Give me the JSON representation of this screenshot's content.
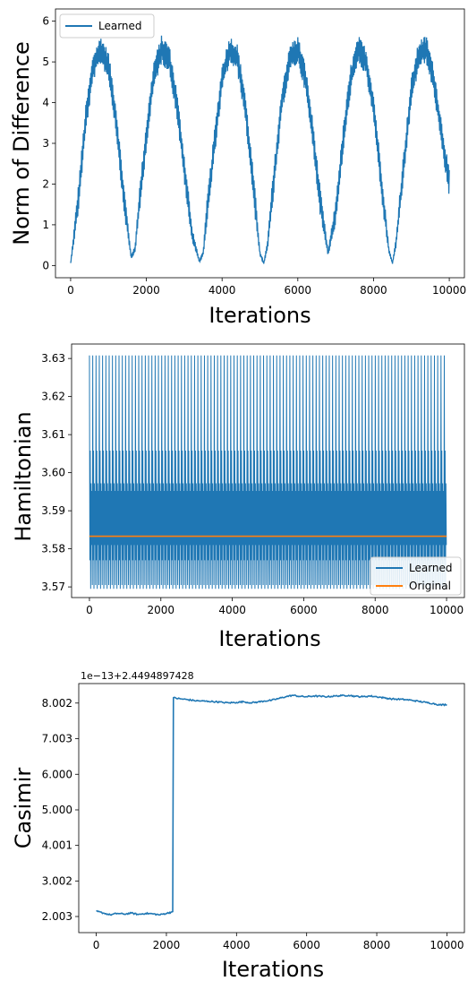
{
  "chart_data": [
    {
      "type": "line",
      "xlabel": "Iterations",
      "ylabel": "Norm of Difference",
      "xlim": [
        -400,
        10400
      ],
      "ylim": [
        -0.3,
        6.3
      ],
      "xticks": [
        0,
        2000,
        4000,
        6000,
        8000,
        10000
      ],
      "xtick_labels": [
        "0",
        "2000",
        "4000",
        "6000",
        "8000",
        "10000"
      ],
      "yticks": [
        0,
        1,
        2,
        3,
        4,
        5,
        6
      ],
      "ytick_labels": [
        "0",
        "1",
        "2",
        "3",
        "4",
        "5",
        "6"
      ],
      "legend": {
        "position": "upper-left",
        "entries": [
          "Learned"
        ]
      },
      "series": [
        {
          "name": "Learned",
          "color": "#1f77b4",
          "x": [
            0,
            200,
            400,
            600,
            800,
            1000,
            1200,
            1400,
            1600,
            1700,
            1800,
            2000,
            2200,
            2400,
            2600,
            2800,
            3000,
            3200,
            3400,
            3500,
            3600,
            3800,
            4000,
            4200,
            4400,
            4600,
            4800,
            5000,
            5100,
            5200,
            5400,
            5600,
            5800,
            6000,
            6200,
            6400,
            6600,
            6800,
            7000,
            7200,
            7400,
            7600,
            7800,
            8000,
            8200,
            8400,
            8500,
            8600,
            8800,
            9000,
            9200,
            9400,
            9600,
            9800,
            10000
          ],
          "values": [
            0.05,
            1.6,
            3.6,
            4.9,
            5.3,
            4.9,
            3.6,
            1.7,
            0.2,
            0.4,
            1.4,
            3.2,
            4.7,
            5.3,
            5.1,
            4.0,
            2.4,
            0.8,
            0.1,
            0.3,
            1.3,
            3.0,
            4.6,
            5.3,
            5.1,
            4.0,
            2.2,
            0.3,
            0.05,
            0.5,
            2.4,
            4.2,
            5.1,
            5.3,
            4.6,
            3.2,
            1.5,
            0.3,
            1.3,
            3.1,
            4.6,
            5.3,
            5.0,
            3.9,
            2.1,
            0.4,
            0.05,
            0.6,
            2.5,
            4.3,
            5.2,
            5.3,
            4.5,
            3.2,
            2.0
          ],
          "oscillation_amplitude": 0.35
        }
      ]
    },
    {
      "type": "line",
      "xlabel": "Iterations",
      "ylabel": "Hamiltonian",
      "xlim": [
        -500,
        10500
      ],
      "ylim": [
        3.5672,
        3.6338
      ],
      "xticks": [
        0,
        2000,
        4000,
        6000,
        8000,
        10000
      ],
      "xtick_labels": [
        "0",
        "2000",
        "4000",
        "6000",
        "8000",
        "10000"
      ],
      "yticks": [
        3.57,
        3.58,
        3.59,
        3.6,
        3.61,
        3.62,
        3.63
      ],
      "ytick_labels": [
        "3.57",
        "3.58",
        "3.59",
        "3.60",
        "3.61",
        "3.62",
        "3.63"
      ],
      "legend": {
        "position": "lower-right",
        "entries": [
          "Learned",
          "Original"
        ]
      },
      "series": [
        {
          "name": "Learned",
          "color": "#1f77b4",
          "x_range": [
            0,
            10000
          ],
          "period": 92,
          "min": 3.5695,
          "max": 3.6308,
          "inner_band": [
            3.577,
            3.5972
          ],
          "secondary_peak": 3.6058
        },
        {
          "name": "Original",
          "color": "#ff7f0e",
          "x": [
            0,
            10000
          ],
          "values": [
            3.5833,
            3.5833
          ]
        }
      ]
    },
    {
      "type": "line",
      "xlabel": "Iterations",
      "ylabel": "Casimir",
      "offset_text": "1e−13+2.4494897428",
      "xlim": [
        -500,
        10500
      ],
      "ylim": [
        1.55,
        8.55
      ],
      "xticks": [
        0,
        2000,
        4000,
        6000,
        8000,
        10000
      ],
      "xtick_labels": [
        "0",
        "2000",
        "4000",
        "6000",
        "8000",
        "10000"
      ],
      "yticks": [
        2.003,
        3.002,
        4.001,
        5.0,
        6.0,
        7.003,
        8.002
      ],
      "ytick_labels": [
        "2.003",
        "3.002",
        "4.001",
        "5.000",
        "6.000",
        "7.003",
        "8.002"
      ],
      "series": [
        {
          "color": "#1f77b4",
          "x": [
            0,
            200,
            400,
            600,
            800,
            1000,
            1200,
            1400,
            1600,
            1800,
            2000,
            2150,
            2180,
            2200,
            2400,
            2600,
            2800,
            3000,
            3200,
            3400,
            3600,
            3800,
            4000,
            4200,
            4400,
            4600,
            4800,
            5000,
            5200,
            5400,
            5600,
            5800,
            6000,
            6200,
            6400,
            6600,
            6800,
            7000,
            7200,
            7400,
            7600,
            7800,
            8000,
            8200,
            8400,
            8600,
            8800,
            9000,
            9200,
            9400,
            9600,
            9800,
            10000
          ],
          "values": [
            2.15,
            2.1,
            2.05,
            2.09,
            2.07,
            2.1,
            2.06,
            2.09,
            2.08,
            2.05,
            2.09,
            2.13,
            2.14,
            8.15,
            8.12,
            8.1,
            8.07,
            8.06,
            8.05,
            8.04,
            8.02,
            8.01,
            8.02,
            8.04,
            8.01,
            8.03,
            8.06,
            8.08,
            8.13,
            8.18,
            8.22,
            8.19,
            8.18,
            8.2,
            8.19,
            8.18,
            8.2,
            8.21,
            8.22,
            8.19,
            8.18,
            8.2,
            8.18,
            8.15,
            8.12,
            8.11,
            8.1,
            8.08,
            8.05,
            8.02,
            7.99,
            7.95,
            7.96
          ],
          "noise": 0.02
        }
      ]
    }
  ]
}
